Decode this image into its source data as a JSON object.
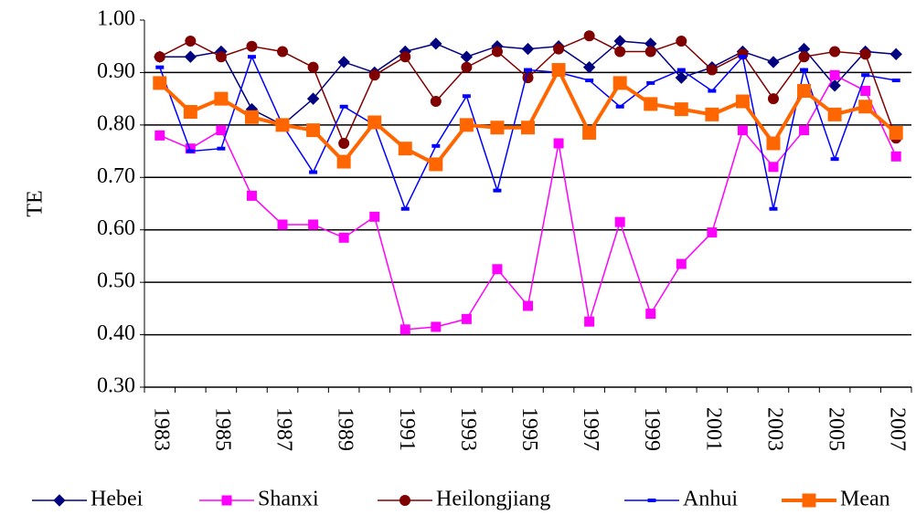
{
  "chart_data": {
    "type": "line",
    "y_label": "TE",
    "categories": [
      "1983",
      null,
      "1985",
      null,
      "1987",
      null,
      "1989",
      null,
      "1991",
      null,
      "1993",
      null,
      "1995",
      null,
      "1997",
      null,
      "1999",
      null,
      "2001",
      null,
      "2003",
      null,
      "2005",
      null,
      "2007"
    ],
    "ylim": [
      0.3,
      1.0
    ],
    "yticks": [
      {
        "value": 0.3,
        "label": "0.30"
      },
      {
        "value": 0.4,
        "label": "0.40"
      },
      {
        "value": 0.5,
        "label": "0.50"
      },
      {
        "value": 0.6,
        "label": "0.60"
      },
      {
        "value": 0.7,
        "label": "0.70"
      },
      {
        "value": 0.8,
        "label": "0.80"
      },
      {
        "value": 0.9,
        "label": "0.90"
      },
      {
        "value": 1.0,
        "label": "1.00"
      }
    ],
    "grid": true,
    "legend": "bottom",
    "series": [
      {
        "name": "Hebei",
        "color": "#000080",
        "marker": "diamond",
        "values": [
          0.93,
          0.93,
          0.94,
          0.83,
          0.8,
          0.85,
          0.92,
          0.9,
          0.94,
          0.955,
          0.93,
          0.95,
          0.945,
          0.95,
          0.91,
          0.96,
          0.955,
          0.89,
          0.91,
          0.94,
          0.92,
          0.945,
          0.875,
          0.94,
          0.935
        ]
      },
      {
        "name": "Shanxi",
        "color": "#ff00ff",
        "marker": "square",
        "values": [
          0.78,
          0.755,
          0.79,
          0.665,
          0.61,
          0.61,
          0.585,
          0.625,
          0.41,
          0.415,
          0.43,
          0.525,
          0.455,
          0.765,
          0.425,
          0.615,
          0.44,
          0.535,
          0.595,
          0.79,
          0.72,
          0.79,
          0.895,
          0.865,
          0.74
        ]
      },
      {
        "name": "Heilongjiang",
        "color": "#800000",
        "marker": "circle",
        "values": [
          0.93,
          0.96,
          0.93,
          0.95,
          0.94,
          0.91,
          0.765,
          0.895,
          0.93,
          0.845,
          0.91,
          0.94,
          0.89,
          0.945,
          0.97,
          0.94,
          0.94,
          0.96,
          0.905,
          0.935,
          0.85,
          0.93,
          0.94,
          0.935,
          0.775
        ]
      },
      {
        "name": "Anhui",
        "color": "#0000ff",
        "marker": "dash",
        "values": [
          0.91,
          0.75,
          0.755,
          0.93,
          0.8,
          0.71,
          0.835,
          0.8,
          0.64,
          0.76,
          0.855,
          0.675,
          0.905,
          0.9,
          0.885,
          0.835,
          0.88,
          0.905,
          0.865,
          0.93,
          0.64,
          0.905,
          0.735,
          0.895,
          0.885
        ]
      },
      {
        "name": "Mean",
        "color": "#ff6600",
        "marker": "bigsquare",
        "values": [
          0.88,
          0.825,
          0.85,
          0.815,
          0.8,
          0.79,
          0.73,
          0.805,
          0.755,
          0.725,
          0.8,
          0.795,
          0.795,
          0.905,
          0.785,
          0.88,
          0.84,
          0.83,
          0.82,
          0.845,
          0.765,
          0.865,
          0.82,
          0.835,
          0.785
        ]
      }
    ]
  }
}
